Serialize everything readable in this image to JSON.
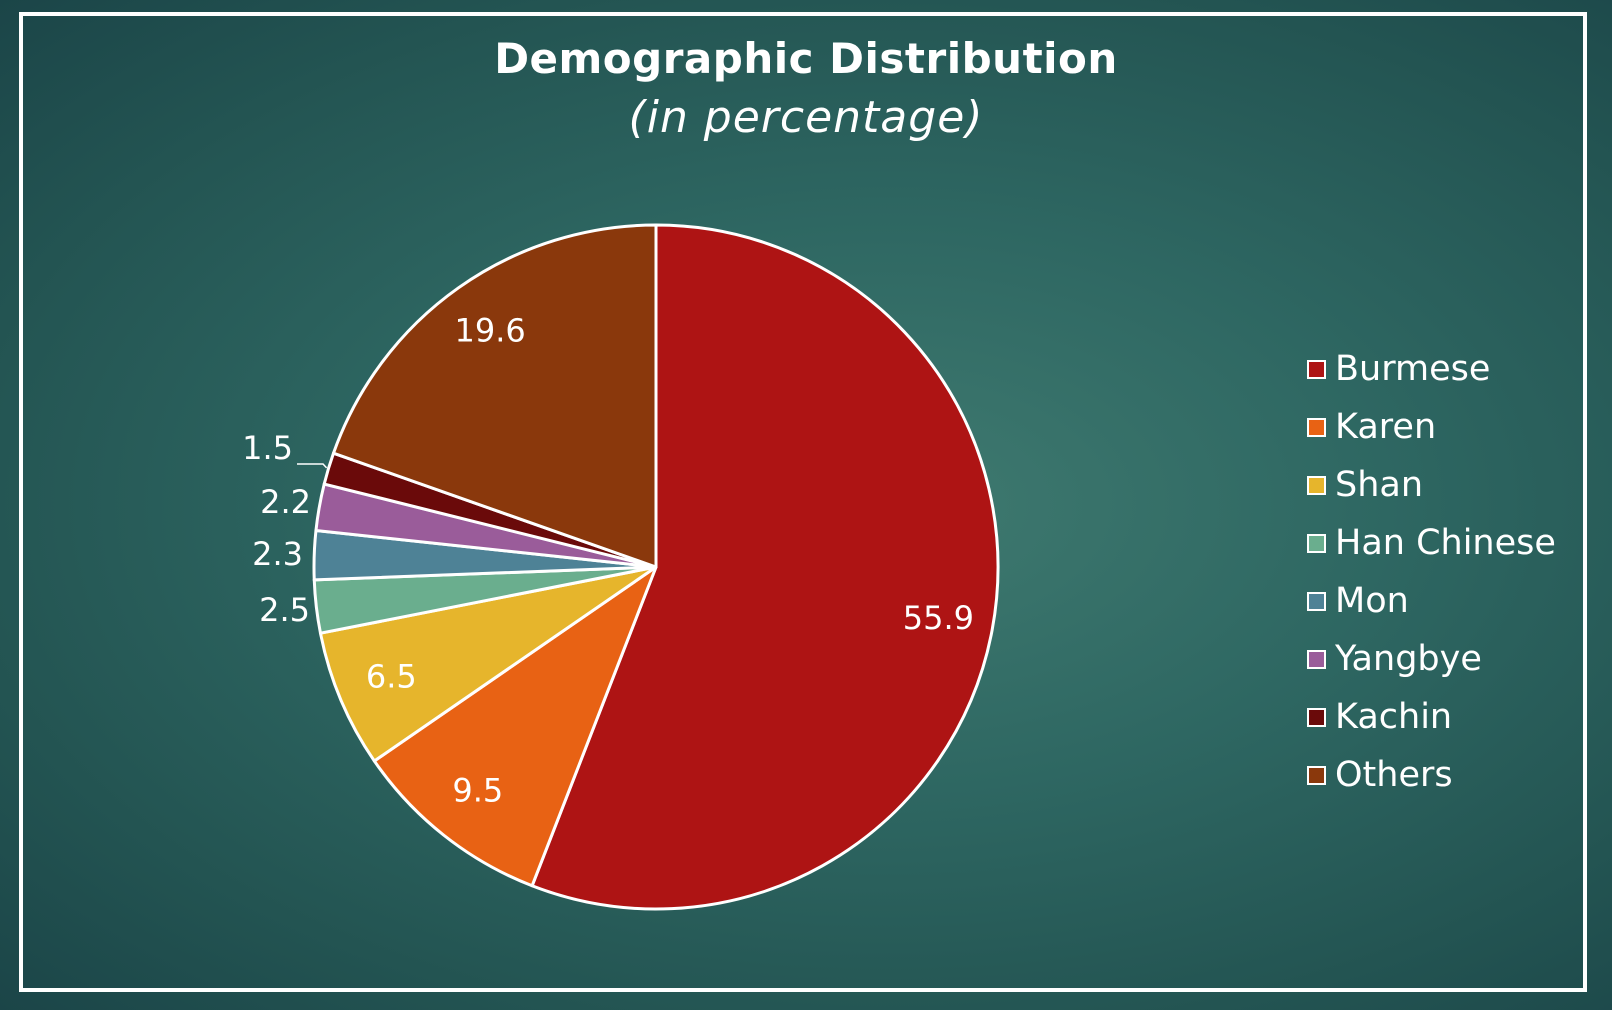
{
  "chart_data": {
    "type": "pie",
    "title": "Demographic Distribution",
    "subtitle": "(in percentage)",
    "categories": [
      "Burmese",
      "Karen",
      "Shan",
      "Han Chinese",
      "Mon",
      "Yangbye",
      "Kachin",
      "Others"
    ],
    "values": [
      55.9,
      9.5,
      6.5,
      2.5,
      2.3,
      2.2,
      1.5,
      19.6
    ],
    "data_labels": [
      "55.9",
      "9.5",
      "6.5",
      "2.5",
      "2.3",
      "2.2",
      "1.5",
      "19.6"
    ],
    "colors": [
      "#ae1414",
      "#e86214",
      "#e6b52c",
      "#6aae8e",
      "#4e8296",
      "#9a5c9a",
      "#6a0a0a",
      "#8a380c"
    ],
    "legend_position": "right"
  }
}
